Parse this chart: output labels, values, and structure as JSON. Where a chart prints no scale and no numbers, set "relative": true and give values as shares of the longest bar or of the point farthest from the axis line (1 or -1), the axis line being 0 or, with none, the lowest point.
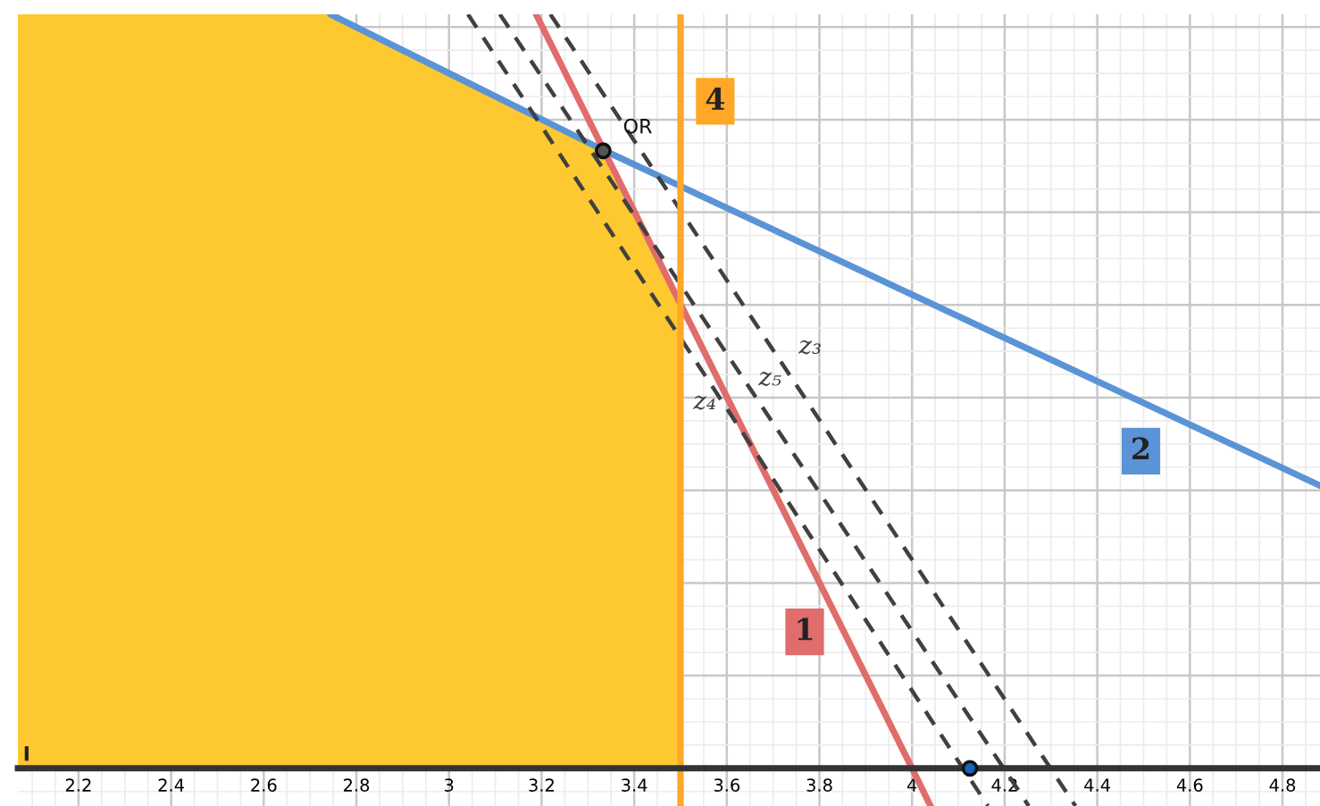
{
  "chart_data": {
    "type": "line",
    "relative": true,
    "series": [
      {
        "type": "area",
        "color": "#fdc830",
        "x": [
          2.069,
          2.744,
          3.333,
          3.5,
          3.5
        ],
        "values": [
          1,
          1,
          0.819,
          0.614,
          0
        ]
      },
      {
        "name": "2",
        "color": "#5b94d6",
        "x": [
          2.744,
          3.333,
          4.881
        ],
        "values": [
          1,
          0.82,
          0.375
        ]
      },
      {
        "name": "1",
        "color": "#e06c6c",
        "x": [
          3.188,
          4.0,
          4.04
        ],
        "values": [
          1,
          0,
          -0.05
        ]
      },
      {
        "name": "z₄",
        "color": "#404040",
        "line_style": "dashed",
        "x": [
          3.041,
          4.11,
          4.164
        ],
        "values": [
          1,
          0,
          -0.05
        ]
      },
      {
        "name": "z₅",
        "color": "#404040",
        "line_style": "dashed",
        "x": [
          3.11,
          4.198,
          4.252
        ],
        "values": [
          1,
          0,
          -0.05
        ]
      },
      {
        "name": "z₃",
        "color": "#404040",
        "line_style": "dashed",
        "x": [
          3.219,
          4.299,
          4.353
        ],
        "values": [
          1,
          0,
          -0.05
        ]
      },
      {
        "type": "scatter",
        "name": "OR",
        "color": "#555555",
        "x": [
          3.333
        ],
        "values": [
          0.819
        ]
      },
      {
        "type": "scatter",
        "color": "#1565c0",
        "x": [
          4.125
        ],
        "values": [
          0
        ]
      }
    ],
    "ref_lines": [
      {
        "axis": "x",
        "value": 3.5,
        "label": "4",
        "color": "#ffa726"
      }
    ],
    "annotations": [
      {
        "text": "I",
        "x": 2.08,
        "y": 0.01
      }
    ],
    "xlim": [
      2.069,
      4.881
    ],
    "xticks": [
      2.2,
      2.4,
      2.6,
      2.8,
      3,
      3.2,
      3.4,
      3.6,
      3.8,
      4,
      4.2,
      4.4,
      4.6,
      4.8
    ],
    "tick_labels": "x",
    "grid": true,
    "legend": false
  }
}
